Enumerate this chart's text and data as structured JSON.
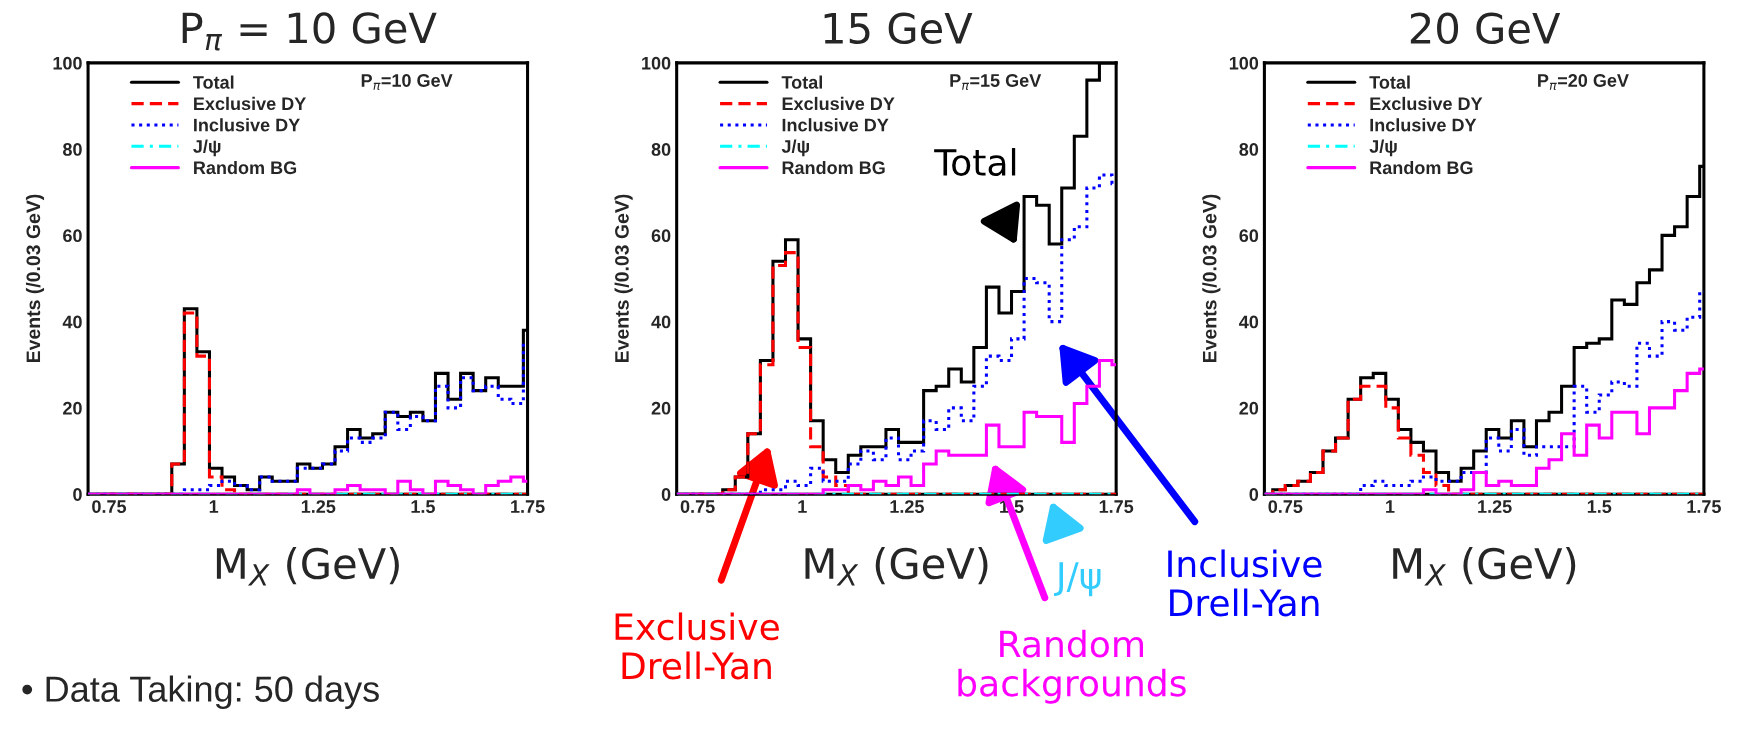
{
  "chart_data": [
    {
      "type": "histogram",
      "title": "P$_{π}$ = 10 GeV",
      "xlabel": "M$_{X}$ (GeV)",
      "ylabel": "Events (/0.03 GeV)",
      "bins": [
        0.7,
        0.72,
        0.75,
        0.78,
        0.81,
        0.84,
        0.87,
        0.9,
        0.93,
        0.96,
        0.99,
        1.02,
        1.05,
        1.08,
        1.11,
        1.14,
        1.17,
        1.2,
        1.23,
        1.26,
        1.29,
        1.32,
        1.35,
        1.38,
        1.41,
        1.44,
        1.47,
        1.5,
        1.53,
        1.56,
        1.59,
        1.62,
        1.65,
        1.68,
        1.71,
        1.74,
        1.75
      ],
      "series": [
        {
          "name": "Total",
          "color": "#000000",
          "line_style": "solid",
          "values": [
            0,
            0,
            0,
            0,
            0,
            0,
            0,
            7,
            43,
            33,
            6,
            4,
            2,
            1,
            4,
            3,
            3,
            7,
            6,
            7,
            11,
            15,
            13,
            14,
            19,
            18,
            19,
            17,
            28,
            22,
            28,
            24,
            27,
            25,
            25,
            38
          ]
        },
        {
          "name": "Exclusive DY",
          "color": "#ff0000",
          "line_style": "dashed",
          "values": [
            0,
            0,
            0,
            0,
            0,
            0,
            0,
            7,
            42,
            32,
            4,
            1,
            0,
            0,
            0,
            0,
            0,
            0,
            0,
            0,
            0,
            0,
            0,
            0,
            0,
            0,
            0,
            0,
            0,
            0,
            0,
            0,
            0,
            0,
            0,
            0
          ]
        },
        {
          "name": "Inclusive DY",
          "color": "#0000ff",
          "line_style": "dotted",
          "values": [
            0,
            0,
            0,
            0,
            0,
            0,
            0,
            0,
            1,
            1,
            2,
            3,
            2,
            1,
            4,
            3,
            3,
            6,
            6,
            7,
            10,
            13,
            12,
            13,
            19,
            15,
            18,
            17,
            25,
            20,
            27,
            24,
            25,
            22,
            21,
            35
          ]
        },
        {
          "name": "J/ψ",
          "color": "#00ffff",
          "line_style": "dashdot",
          "values": [
            0,
            0,
            0,
            0,
            0,
            0,
            0,
            0,
            0,
            0,
            0,
            0,
            0,
            0,
            0,
            0,
            0,
            0,
            0,
            0,
            0,
            0,
            0,
            0,
            0,
            0,
            0,
            0,
            0,
            0,
            0,
            0,
            0,
            0,
            0,
            0
          ]
        },
        {
          "name": "Random BG",
          "color": "#ff00ff",
          "line_style": "solid",
          "values": [
            0,
            0,
            0,
            0,
            0,
            0,
            0,
            0,
            0,
            0,
            0,
            0,
            0,
            0,
            0,
            0,
            0,
            1,
            0,
            0,
            1,
            2,
            1,
            1,
            0,
            3,
            1,
            0,
            3,
            2,
            1,
            0,
            2,
            3,
            4,
            3
          ]
        }
      ],
      "xlim": [
        0.7,
        1.75
      ],
      "ylim": [
        0,
        100
      ],
      "xticks": [
        0.75,
        1,
        1.25,
        1.5,
        1.75
      ],
      "yticks": [
        0,
        20,
        40,
        60,
        80,
        100
      ],
      "legend": "top left",
      "annotations": [
        "P$_{π}$=10 GeV",
        "• Data Taking: 50 days"
      ]
    },
    {
      "type": "histogram",
      "title": "15 GeV",
      "xlabel": "M$_{X}$ (GeV)",
      "ylabel": "Events (/0.03 GeV)",
      "bins": [
        0.7,
        0.72,
        0.75,
        0.78,
        0.81,
        0.84,
        0.87,
        0.9,
        0.93,
        0.96,
        0.99,
        1.02,
        1.05,
        1.08,
        1.11,
        1.14,
        1.17,
        1.2,
        1.23,
        1.26,
        1.29,
        1.32,
        1.35,
        1.38,
        1.41,
        1.44,
        1.47,
        1.5,
        1.53,
        1.56,
        1.59,
        1.62,
        1.65,
        1.68,
        1.71,
        1.74,
        1.75
      ],
      "series": [
        {
          "name": "Total",
          "color": "#000000",
          "line_style": "solid",
          "values": [
            0,
            0,
            0,
            0,
            1,
            4,
            14,
            31,
            54,
            59,
            36,
            17,
            8,
            5,
            9,
            11,
            11,
            15,
            12,
            12,
            24,
            25,
            29,
            26,
            34,
            48,
            42,
            47,
            69,
            67,
            58,
            71,
            83,
            96,
            100,
            100
          ]
        },
        {
          "name": "Exclusive DY",
          "color": "#ff0000",
          "line_style": "dashed",
          "values": [
            0,
            0,
            0,
            0,
            1,
            4,
            14,
            30,
            53,
            56,
            34,
            11,
            4,
            2,
            0,
            0,
            0,
            0,
            0,
            0,
            0,
            0,
            0,
            0,
            0,
            0,
            0,
            0,
            0,
            0,
            0,
            0,
            0,
            0,
            0,
            0
          ]
        },
        {
          "name": "Inclusive DY",
          "color": "#0000ff",
          "line_style": "dotted",
          "values": [
            0,
            0,
            0,
            0,
            0,
            0,
            0,
            1,
            1,
            3,
            2,
            6,
            3,
            3,
            7,
            10,
            8,
            13,
            8,
            10,
            17,
            15,
            20,
            17,
            25,
            32,
            31,
            36,
            50,
            49,
            40,
            59,
            62,
            71,
            74,
            72
          ]
        },
        {
          "name": "J/ψ",
          "color": "#00ffff",
          "line_style": "dashdot",
          "values": [
            0,
            0,
            0,
            0,
            0,
            0,
            0,
            0,
            0,
            0,
            0,
            0,
            0,
            0,
            0,
            0,
            0,
            0,
            0,
            0,
            0,
            0,
            0,
            0,
            0,
            0,
            0,
            0,
            0,
            0,
            0,
            0,
            0,
            0,
            0,
            0
          ]
        },
        {
          "name": "Random BG",
          "color": "#ff00ff",
          "line_style": "solid",
          "values": [
            0,
            0,
            0,
            0,
            0,
            0,
            0,
            0,
            0,
            0,
            0,
            0,
            1,
            1,
            2,
            1,
            3,
            2,
            4,
            2,
            7,
            10,
            9,
            9,
            9,
            16,
            11,
            11,
            19,
            18,
            18,
            12,
            21,
            25,
            31,
            30
          ]
        }
      ],
      "xlim": [
        0.7,
        1.75
      ],
      "ylim": [
        0,
        100
      ],
      "xticks": [
        0.75,
        1,
        1.25,
        1.5,
        1.75
      ],
      "yticks": [
        0,
        20,
        40,
        60,
        80,
        100
      ],
      "legend": "top left",
      "annotations": [
        "P$_{π}$=15 GeV",
        "Total",
        "Exclusive\nDrell-Yan",
        "Random\nbackgrounds",
        "J/ψ",
        "Inclusive\nDrell-Yan"
      ]
    },
    {
      "type": "histogram",
      "title": "20 GeV",
      "xlabel": "M$_{X}$ (GeV)",
      "ylabel": "Events (/0.03 GeV)",
      "bins": [
        0.7,
        0.72,
        0.75,
        0.78,
        0.81,
        0.84,
        0.87,
        0.9,
        0.93,
        0.96,
        0.99,
        1.02,
        1.05,
        1.08,
        1.11,
        1.14,
        1.17,
        1.2,
        1.23,
        1.26,
        1.29,
        1.32,
        1.35,
        1.38,
        1.41,
        1.44,
        1.47,
        1.5,
        1.53,
        1.56,
        1.59,
        1.62,
        1.65,
        1.68,
        1.71,
        1.74,
        1.75
      ],
      "series": [
        {
          "name": "Total",
          "color": "#000000",
          "line_style": "solid",
          "values": [
            0,
            1,
            2,
            3,
            5,
            10,
            13,
            22,
            27,
            28,
            22,
            15,
            12,
            10,
            5,
            3,
            6,
            10,
            15,
            13,
            17,
            11,
            17,
            19,
            25,
            34,
            35,
            36,
            45,
            44,
            49,
            52,
            60,
            62,
            69,
            76
          ]
        },
        {
          "name": "Exclusive DY",
          "color": "#ff0000",
          "line_style": "dashed",
          "values": [
            0,
            1,
            2,
            3,
            5,
            10,
            13,
            22,
            25,
            25,
            20,
            13,
            9,
            5,
            2,
            0,
            0,
            0,
            0,
            0,
            0,
            0,
            0,
            0,
            0,
            0,
            0,
            0,
            0,
            0,
            0,
            0,
            0,
            0,
            0,
            0
          ]
        },
        {
          "name": "Inclusive DY",
          "color": "#0000ff",
          "line_style": "dotted",
          "values": [
            0,
            0,
            0,
            0,
            0,
            0,
            0,
            0,
            2,
            3,
            2,
            2,
            3,
            4,
            3,
            3,
            5,
            5,
            13,
            10,
            15,
            9,
            11,
            11,
            11,
            25,
            19,
            23,
            26,
            25,
            35,
            32,
            40,
            38,
            41,
            47
          ]
        },
        {
          "name": "J/ψ",
          "color": "#00ffff",
          "line_style": "dashdot",
          "values": [
            0,
            0,
            0,
            0,
            0,
            0,
            0,
            0,
            0,
            0,
            0,
            0,
            0,
            0,
            0,
            0,
            0,
            0,
            0,
            0,
            0,
            0,
            0,
            0,
            0,
            0,
            0,
            0,
            0,
            0,
            0,
            0,
            0,
            0,
            0,
            0
          ]
        },
        {
          "name": "Random BG",
          "color": "#ff00ff",
          "line_style": "solid",
          "values": [
            0,
            0,
            0,
            0,
            0,
            0,
            0,
            0,
            0,
            0,
            0,
            0,
            0,
            1,
            0,
            0,
            1,
            5,
            2,
            3,
            2,
            2,
            6,
            8,
            14,
            9,
            16,
            13,
            19,
            19,
            14,
            20,
            20,
            24,
            28,
            29
          ]
        }
      ],
      "xlim": [
        0.7,
        1.75
      ],
      "ylim": [
        0,
        100
      ],
      "xticks": [
        0.75,
        1,
        1.25,
        1.5,
        1.75
      ],
      "yticks": [
        0,
        20,
        40,
        60,
        80,
        100
      ],
      "legend": "top left",
      "annotations": [
        "P$_{π}$=20 GeV"
      ]
    }
  ]
}
